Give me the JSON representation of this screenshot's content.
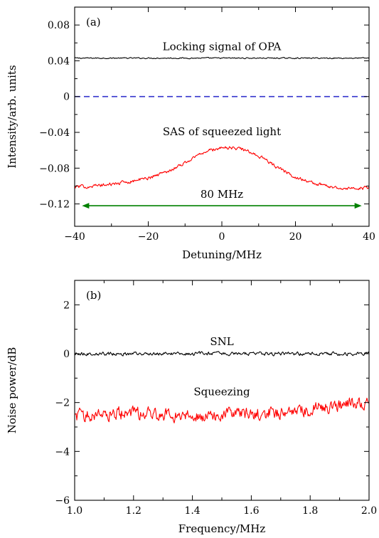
{
  "chart_data": [
    {
      "type": "line",
      "panel_label": "(a)",
      "xlabel": "Detuning/MHz",
      "ylabel": "Intensity/arb. units",
      "xlim": [
        -40,
        40
      ],
      "ylim": [
        -0.145,
        0.1
      ],
      "xticks": [
        -40,
        -20,
        0,
        20,
        40
      ],
      "xtick_labels": [
        "−40",
        "−20",
        "0",
        "20",
        "40"
      ],
      "yticks": [
        0.08,
        0.04,
        0,
        -0.04,
        -0.08,
        -0.12
      ],
      "ytick_labels": [
        "0.08",
        "0.04",
        "0",
        "−0.04",
        "−0.08",
        "−0.12"
      ],
      "grid": false,
      "series": [
        {
          "color": "#000000",
          "style": "solid",
          "x": [
            -40,
            -30,
            -20,
            -10,
            0,
            10,
            20,
            30,
            40
          ],
          "y": [
            0.043,
            0.043,
            0.043,
            0.043,
            0.043,
            0.043,
            0.043,
            0.043,
            0.043
          ]
        },
        {
          "color": "#3333cc",
          "style": "dashed",
          "x": [
            -40,
            40
          ],
          "y": [
            0,
            0
          ]
        },
        {
          "color": "#ff0000",
          "style": "solid",
          "x": [
            -40,
            -35,
            -30,
            -25,
            -20,
            -15,
            -10,
            -5,
            0,
            5,
            10,
            15,
            20,
            25,
            30,
            35,
            40
          ],
          "y": [
            -0.101,
            -0.1,
            -0.098,
            -0.095,
            -0.091,
            -0.084,
            -0.074,
            -0.062,
            -0.057,
            -0.058,
            -0.066,
            -0.079,
            -0.09,
            -0.097,
            -0.101,
            -0.103,
            -0.102
          ]
        }
      ],
      "annotations": [
        {
          "text": "Locking signal of OPA",
          "x": 0,
          "y": 0.052
        },
        {
          "text": "SAS of squeezed light",
          "x": 0,
          "y": -0.043
        },
        {
          "text": "80 MHz",
          "x": 0,
          "y": -0.113
        }
      ],
      "arrow": {
        "x_start": -38,
        "x_end": 38,
        "y": -0.122,
        "color": "#008000"
      }
    },
    {
      "type": "line",
      "panel_label": "(b)",
      "xlabel": "Frequency/MHz",
      "ylabel": "Noise power/dB",
      "xlim": [
        1.0,
        2.0
      ],
      "ylim": [
        -6,
        3
      ],
      "xticks": [
        1.0,
        1.2,
        1.4,
        1.6,
        1.8,
        2.0
      ],
      "xtick_labels": [
        "1.0",
        "1.2",
        "1.4",
        "1.6",
        "1.8",
        "2.0"
      ],
      "yticks": [
        2,
        0,
        -2,
        -4,
        -6
      ],
      "ytick_labels": [
        "2",
        "0",
        "−2",
        "−4",
        "−6"
      ],
      "grid": false,
      "series": [
        {
          "name": "SNL",
          "color": "#000000",
          "style": "solid",
          "x": [
            1.0,
            1.25,
            1.5,
            1.75,
            2.0
          ],
          "y": [
            0.0,
            0.0,
            0.0,
            0.0,
            0.0
          ]
        },
        {
          "name": "Squeezing",
          "color": "#ff0000",
          "style": "solid",
          "x": [
            1.0,
            1.1,
            1.2,
            1.3,
            1.4,
            1.5,
            1.6,
            1.7,
            1.8,
            1.9,
            2.0
          ],
          "y": [
            -2.55,
            -2.45,
            -2.45,
            -2.5,
            -2.55,
            -2.5,
            -2.45,
            -2.4,
            -2.3,
            -2.1,
            -2.0
          ]
        }
      ],
      "annotations": [
        {
          "text": "SNL",
          "x": 1.5,
          "y": 0.35
        },
        {
          "text": "Squeezing",
          "x": 1.5,
          "y": -1.7
        }
      ]
    }
  ]
}
